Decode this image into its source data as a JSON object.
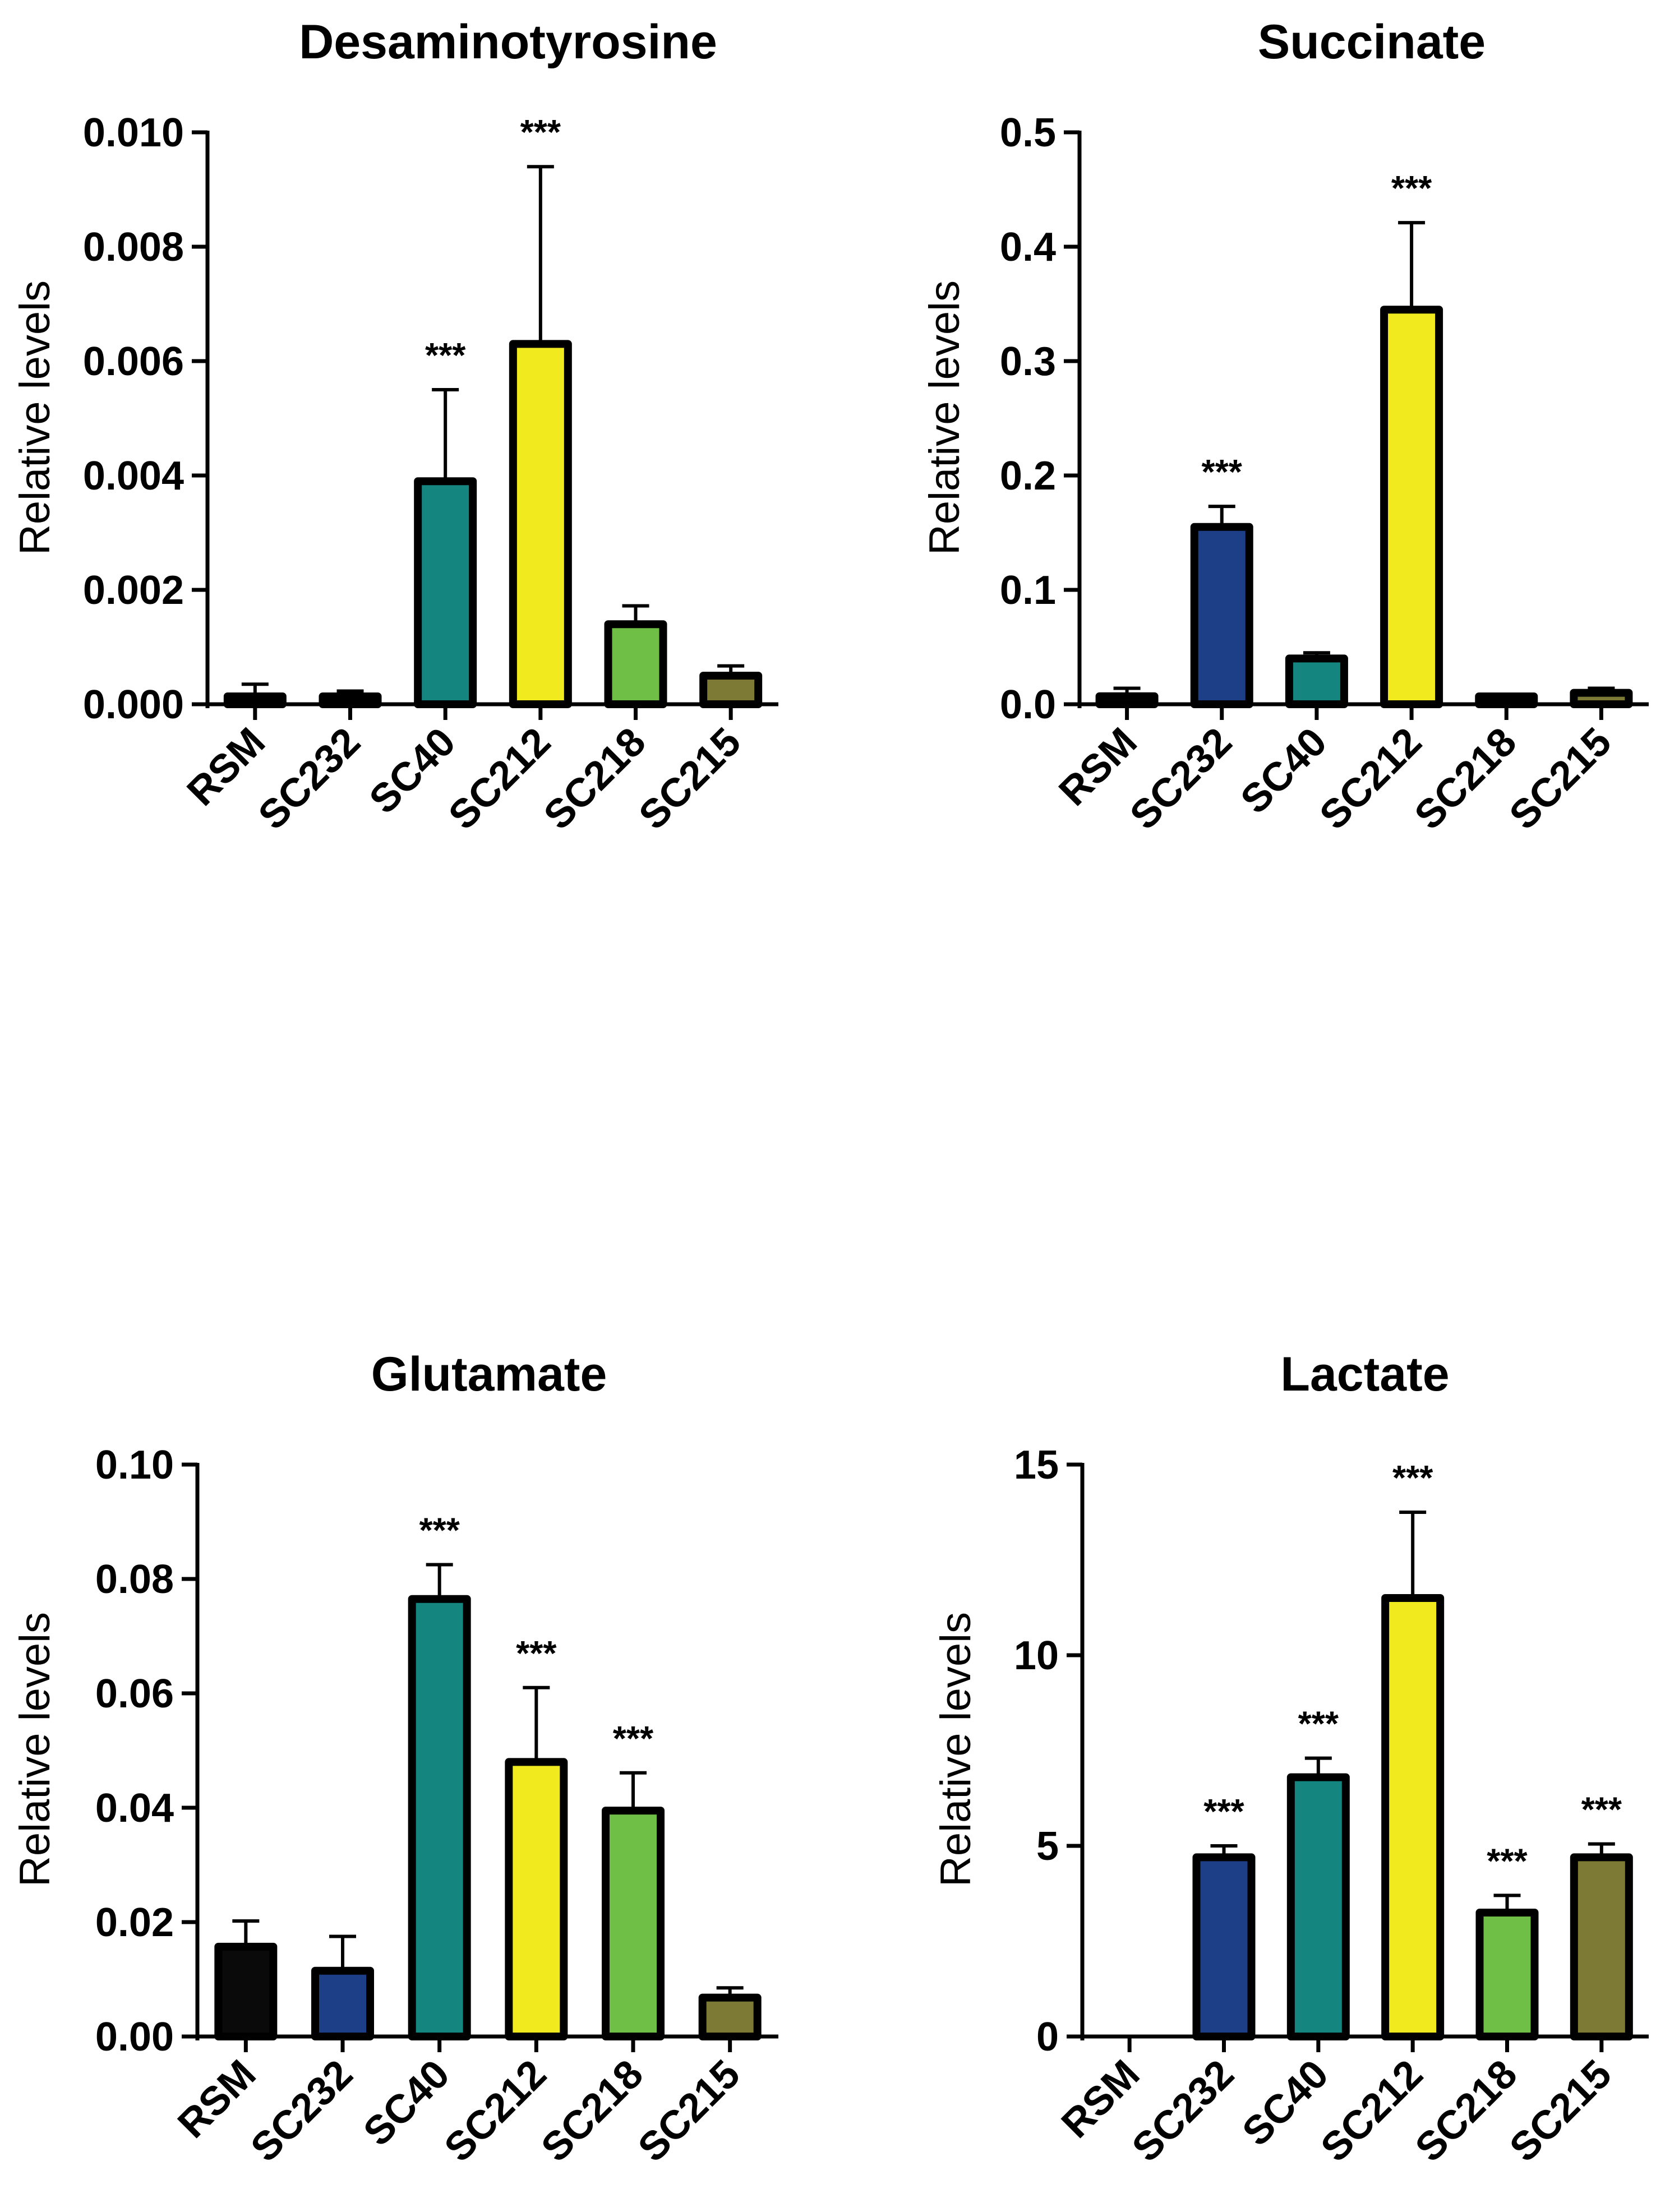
{
  "chart_data": [
    {
      "type": "bar",
      "title": "Desaminotyrosine",
      "xlabel": "",
      "ylabel": "Relative levels",
      "ylim": [
        0,
        0.01
      ],
      "yticks": [
        "0.000",
        "0.002",
        "0.004",
        "0.006",
        "0.008",
        "0.010"
      ],
      "categories": [
        "RSM",
        "SC232",
        "SC40",
        "SC212",
        "SC218",
        "SC215"
      ],
      "values": [
        0.0001,
        8e-05,
        0.0039,
        0.0063,
        0.0014,
        0.0005
      ],
      "errors": [
        0.00025,
        0.00015,
        0.0016,
        0.0031,
        0.00032,
        0.00017
      ],
      "significance": [
        "",
        "",
        "***",
        "***",
        "",
        ""
      ],
      "colors": [
        "#0a0a0a",
        "#1c3f88",
        "#15857f",
        "#f1ea1f",
        "#6fbe45",
        "#7d7a35"
      ],
      "grid": false
    },
    {
      "type": "bar",
      "title": "Succinate",
      "xlabel": "",
      "ylabel": "Relative levels",
      "ylim": [
        0,
        0.5
      ],
      "yticks": [
        "0.0",
        "0.1",
        "0.2",
        "0.3",
        "0.4",
        "0.5"
      ],
      "categories": [
        "RSM",
        "SC232",
        "SC40",
        "SC212",
        "SC218",
        "SC215"
      ],
      "values": [
        0.007,
        0.155,
        0.04,
        0.345,
        0.004,
        0.01
      ],
      "errors": [
        0.007,
        0.018,
        0.005,
        0.076,
        0.003,
        0.004
      ],
      "significance": [
        "",
        "***",
        "",
        "***",
        "",
        ""
      ],
      "colors": [
        "#0a0a0a",
        "#1c3f88",
        "#15857f",
        "#f1ea1f",
        "#6fbe45",
        "#7d7a35"
      ],
      "grid": false
    },
    {
      "type": "bar",
      "title": "Glutamate",
      "xlabel": "",
      "ylabel": "Relative levels",
      "ylim": [
        0,
        0.1
      ],
      "yticks": [
        "0.00",
        "0.02",
        "0.04",
        "0.06",
        "0.08",
        "0.10"
      ],
      "categories": [
        "RSM",
        "SC232",
        "SC40",
        "SC212",
        "SC218",
        "SC215"
      ],
      "values": [
        0.0157,
        0.0115,
        0.0765,
        0.048,
        0.0395,
        0.0068
      ],
      "errors": [
        0.0045,
        0.006,
        0.006,
        0.013,
        0.0066,
        0.0017
      ],
      "significance": [
        "",
        "",
        "***",
        "***",
        "***",
        ""
      ],
      "colors": [
        "#0a0a0a",
        "#1c3f88",
        "#15857f",
        "#f1ea1f",
        "#6fbe45",
        "#7d7a35"
      ],
      "grid": false
    },
    {
      "type": "bar",
      "title": "Lactate",
      "xlabel": "",
      "ylabel": "Relative levels",
      "ylim": [
        0,
        15
      ],
      "yticks": [
        "0",
        "5",
        "10",
        "15"
      ],
      "categories": [
        "RSM",
        "SC232",
        "SC40",
        "SC212",
        "SC218",
        "SC215"
      ],
      "values": [
        0,
        4.7,
        6.8,
        11.5,
        3.25,
        4.7
      ],
      "errors": [
        0,
        0.3,
        0.5,
        2.25,
        0.45,
        0.35
      ],
      "significance": [
        "",
        "***",
        "***",
        "***",
        "***",
        "***"
      ],
      "colors": [
        "#0a0a0a",
        "#1c3f88",
        "#15857f",
        "#f1ea1f",
        "#6fbe45",
        "#7d7a35"
      ],
      "grid": false
    }
  ]
}
